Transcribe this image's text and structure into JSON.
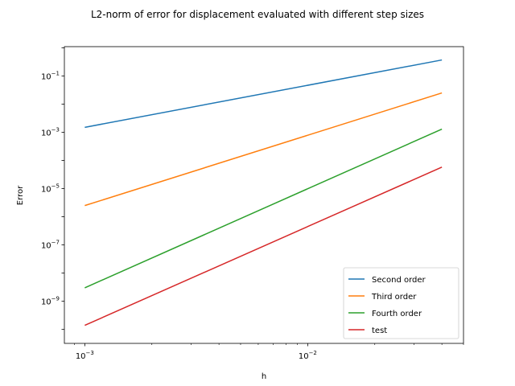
{
  "chart_data": {
    "type": "line",
    "title": "L2-norm of error for displacement evaluated with different step sizes",
    "xlabel": "h",
    "ylabel": "Error",
    "xscale": "log",
    "yscale": "log",
    "xlim": [
      0.00081,
      0.05
    ],
    "ylim": [
      3.2e-11,
      1.1
    ],
    "grid": false,
    "legend_position": "lower-right",
    "x_ticks": [
      {
        "value": 0.001,
        "mantissa": "10",
        "exponent": "−3"
      },
      {
        "value": 0.01,
        "mantissa": "10",
        "exponent": "−2"
      }
    ],
    "y_ticks": [
      {
        "value": 1e-09,
        "mantissa": "10",
        "exponent": "−9"
      },
      {
        "value": 1e-07,
        "mantissa": "10",
        "exponent": "−7"
      },
      {
        "value": 1e-05,
        "mantissa": "10",
        "exponent": "−5"
      },
      {
        "value": 0.001,
        "mantissa": "10",
        "exponent": "−3"
      },
      {
        "value": 0.1,
        "mantissa": "10",
        "exponent": "−1"
      }
    ],
    "x": [
      0.001,
      0.04
    ],
    "series": [
      {
        "name": "Second order",
        "color": "#1f77b4",
        "values": [
          0.0015,
          0.37
        ]
      },
      {
        "name": "Third order",
        "color": "#ff7f0e",
        "values": [
          2.5e-06,
          0.025
        ]
      },
      {
        "name": "Fourth order",
        "color": "#2ca02c",
        "values": [
          3e-09,
          0.0013
        ]
      },
      {
        "name": "test",
        "color": "#d62728",
        "values": [
          1.4e-10,
          5.8e-05
        ]
      }
    ]
  }
}
